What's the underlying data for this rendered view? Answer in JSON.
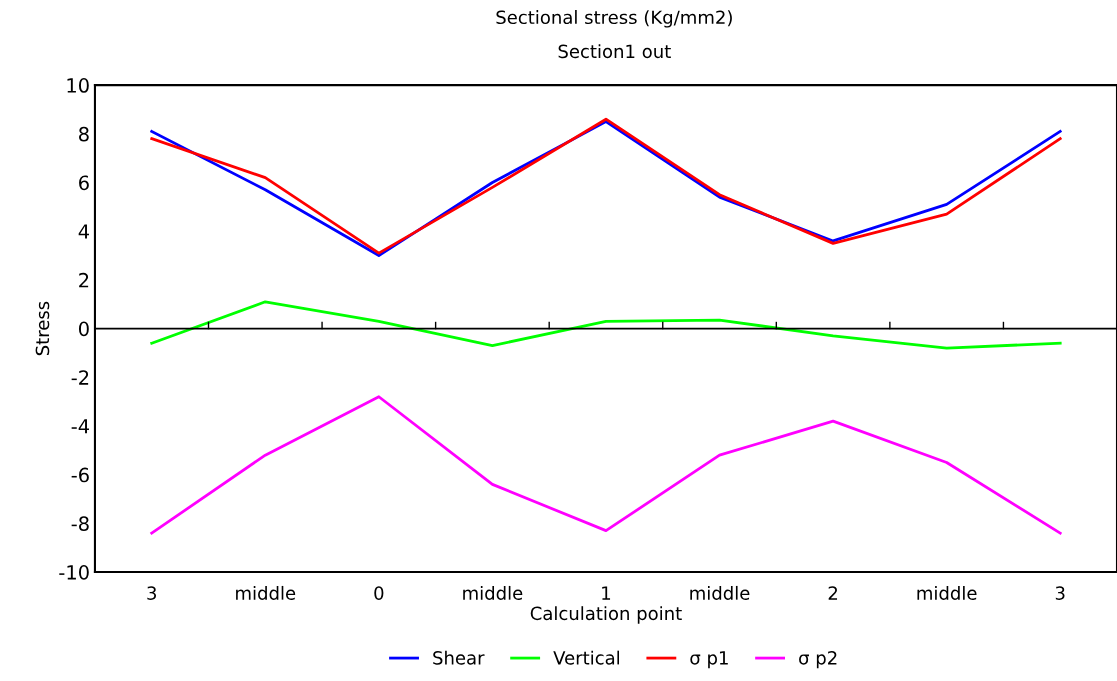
{
  "chart_data": {
    "type": "line",
    "title": "Sectional stress (Kg/mm2)",
    "subtitle": "Section1 out",
    "xlabel": "Calculation point",
    "ylabel": "Stress",
    "categories": [
      "3",
      "middle",
      "0",
      "middle",
      "1",
      "middle",
      "2",
      "middle",
      "3"
    ],
    "series": [
      {
        "name": "Shear",
        "color": "#0000ff",
        "values": [
          8.1,
          5.7,
          3.0,
          6.0,
          8.5,
          5.4,
          3.6,
          5.1,
          8.1
        ]
      },
      {
        "name": "Vertical",
        "color": "#00ff00",
        "values": [
          -0.6,
          1.1,
          0.3,
          -0.7,
          0.3,
          0.35,
          -0.3,
          -0.8,
          -0.6
        ]
      },
      {
        "name": "σ p1",
        "color": "#ff0000",
        "values": [
          7.8,
          6.2,
          3.1,
          5.8,
          8.6,
          5.5,
          3.5,
          4.7,
          7.8
        ]
      },
      {
        "name": "σ p2",
        "color": "#ff00ff",
        "values": [
          -8.4,
          -5.2,
          -2.8,
          -6.4,
          -8.3,
          -5.2,
          -3.8,
          -5.5,
          -8.4
        ]
      }
    ],
    "ylim": [
      -10,
      10
    ],
    "yticks": [
      -10,
      -8,
      -6,
      -4,
      -2,
      0,
      2,
      4,
      6,
      8,
      10
    ],
    "ref_lines": [
      {
        "axis": "y",
        "value": 0,
        "color": "#000000"
      }
    ],
    "grid": false,
    "legend": "bottom",
    "marker": "none",
    "line_style": "solid"
  }
}
